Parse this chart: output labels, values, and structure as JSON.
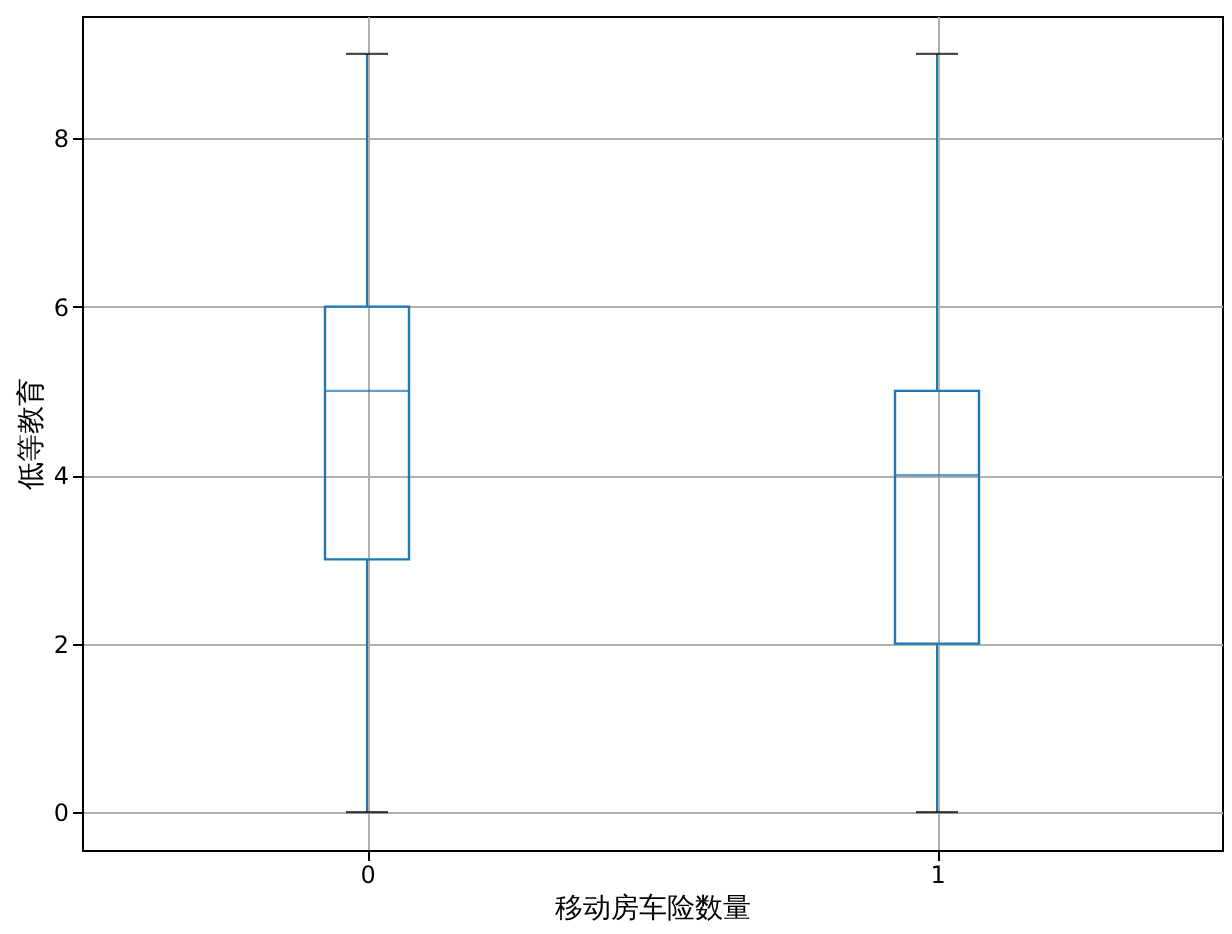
{
  "chart_data": {
    "type": "box",
    "xlabel": "移动房车险数量",
    "ylabel": "低等教育",
    "categories": [
      "0",
      "1"
    ],
    "series": [
      {
        "color": "#1f77b4",
        "boxes": [
          {
            "low": 0,
            "q1": 3,
            "median": 5,
            "q3": 6,
            "high": 9
          },
          {
            "low": 0,
            "q1": 2,
            "median": 4,
            "q3": 5,
            "high": 9
          }
        ]
      }
    ],
    "ylim": [
      -0.45,
      9.45
    ],
    "yticks": [
      0,
      2,
      4,
      6,
      8
    ],
    "grid": true
  }
}
